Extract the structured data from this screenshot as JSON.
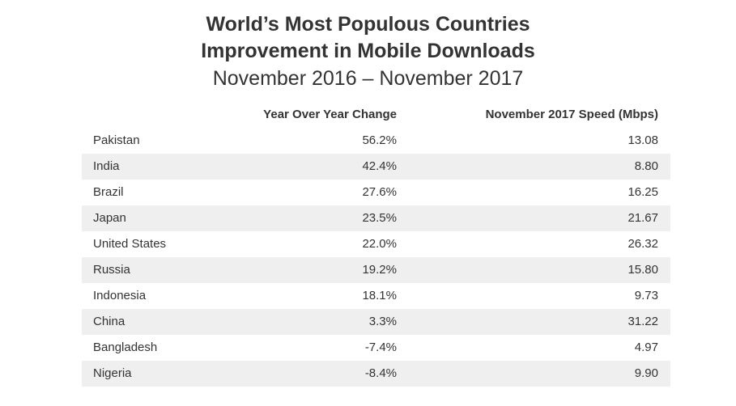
{
  "chart_data": {
    "type": "table",
    "title": [
      "World’s Most Populous Countries",
      "Improvement in Mobile Downloads"
    ],
    "subtitle": "November 2016 – November 2017",
    "columns": [
      "",
      "Year Over Year Change",
      "November 2017 Speed (Mbps)"
    ],
    "rows": [
      {
        "country": "Pakistan",
        "yoy_change": "56.2%",
        "speed": "13.08"
      },
      {
        "country": "India",
        "yoy_change": "42.4%",
        "speed": "8.80"
      },
      {
        "country": "Brazil",
        "yoy_change": "27.6%",
        "speed": "16.25"
      },
      {
        "country": "Japan",
        "yoy_change": "23.5%",
        "speed": "21.67"
      },
      {
        "country": "United States",
        "yoy_change": "22.0%",
        "speed": "26.32"
      },
      {
        "country": "Russia",
        "yoy_change": "19.2%",
        "speed": "15.80"
      },
      {
        "country": "Indonesia",
        "yoy_change": "18.1%",
        "speed": "9.73"
      },
      {
        "country": "China",
        "yoy_change": "3.3%",
        "speed": "31.22"
      },
      {
        "country": "Bangladesh",
        "yoy_change": "-7.4%",
        "speed": "4.97"
      },
      {
        "country": "Nigeria",
        "yoy_change": "-8.4%",
        "speed": "9.90"
      }
    ],
    "row_shading": {
      "even": "#ffffff",
      "odd": "#efefef"
    },
    "text_color": "#333333"
  }
}
